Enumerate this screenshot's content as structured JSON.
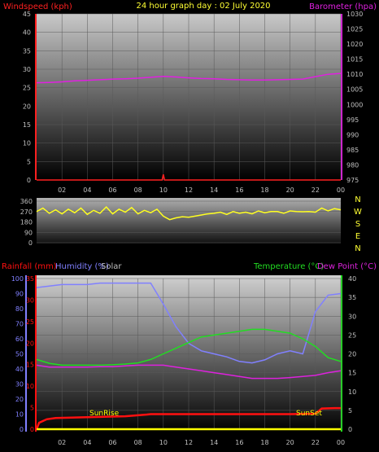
{
  "header": {
    "left_label": "Windspeed (kph)",
    "center_title": "24 hour graph day : 02 July 2020",
    "right_label": "Barometer (hpa)"
  },
  "colors": {
    "wind": "#ff2020",
    "barometer": "#e020e0",
    "title": "#ffff33",
    "wind_dir": "#ffff20",
    "rain": "#ff1010",
    "humidity": "#8080ff",
    "solar": "#c0c0c0",
    "temperature": "#22dd22",
    "dewpoint": "#dd22dd",
    "sun": "#ffff00",
    "axis_text": "#c0c0c0"
  },
  "panel3": {
    "rain_label": "Rainfall (mm)",
    "humidity_label": "Humidity (%)",
    "solar_label": "Solar",
    "temp_label": "Temperature (°C)",
    "dew_label": "Dew Point (°C)",
    "sunrise_label": "SunRise",
    "sunset_label": "SunSet"
  },
  "chart_data": [
    {
      "type": "line",
      "x_ticks": [
        "02",
        "04",
        "06",
        "08",
        "10",
        "12",
        "14",
        "16",
        "18",
        "20",
        "22",
        "00"
      ],
      "left_axis": {
        "ticks": [
          0,
          5,
          10,
          15,
          20,
          25,
          30,
          35,
          40,
          45
        ],
        "ylim": [
          0,
          45
        ]
      },
      "right_axis": {
        "ticks": [
          975,
          980,
          985,
          990,
          995,
          1000,
          1005,
          1010,
          1015,
          1020,
          1025,
          1030
        ],
        "ylim": [
          975,
          1030
        ]
      },
      "series": [
        {
          "name": "Barometer (hpa)",
          "axis": "right",
          "x": [
            0,
            1,
            2,
            3,
            4,
            5,
            6,
            7,
            8,
            9,
            10,
            11,
            12,
            13,
            14,
            15,
            16,
            17,
            18,
            19,
            20,
            21,
            22,
            23,
            24
          ],
          "values": [
            1007.2,
            1007.3,
            1007.5,
            1007.8,
            1008.0,
            1008.2,
            1008.4,
            1008.5,
            1008.7,
            1009.0,
            1009.3,
            1009.1,
            1008.8,
            1008.6,
            1008.5,
            1008.3,
            1008.2,
            1008.1,
            1008.1,
            1008.2,
            1008.3,
            1008.4,
            1009.2,
            1010.0,
            1010.3
          ]
        },
        {
          "name": "Windspeed (kph)",
          "axis": "left",
          "x": [
            0,
            4,
            8,
            9.9,
            10.0,
            10.1,
            12,
            16,
            20,
            24
          ],
          "values": [
            0,
            0,
            0,
            0,
            1.5,
            0,
            0,
            0,
            0,
            0
          ]
        }
      ]
    },
    {
      "type": "line",
      "y_ticks": [
        0,
        90,
        180,
        270,
        360
      ],
      "ylim": [
        0,
        360
      ],
      "side_labels": [
        "N",
        "W",
        "S",
        "E",
        "N"
      ],
      "series": [
        {
          "name": "Wind direction",
          "x": [
            0,
            0.5,
            1,
            1.5,
            2,
            2.5,
            3,
            3.5,
            4,
            4.5,
            5,
            5.5,
            6,
            6.5,
            7,
            7.5,
            8,
            8.5,
            9,
            9.5,
            10,
            10.5,
            11,
            11.5,
            12,
            12.5,
            13,
            13.5,
            14,
            14.5,
            15,
            15.5,
            16,
            16.5,
            17,
            17.5,
            18,
            18.5,
            19,
            19.5,
            20,
            20.5,
            21,
            21.5,
            22,
            22.5,
            23,
            23.5,
            24
          ],
          "values": [
            270,
            300,
            255,
            285,
            250,
            290,
            260,
            300,
            245,
            280,
            255,
            310,
            250,
            290,
            265,
            305,
            250,
            280,
            260,
            290,
            230,
            200,
            215,
            225,
            220,
            230,
            240,
            250,
            255,
            265,
            245,
            270,
            255,
            265,
            250,
            275,
            260,
            270,
            270,
            255,
            275,
            270,
            268,
            270,
            265,
            300,
            275,
            295,
            285
          ]
        }
      ]
    },
    {
      "type": "line",
      "x_ticks": [
        "02",
        "04",
        "06",
        "08",
        "10",
        "12",
        "14",
        "16",
        "18",
        "20",
        "22",
        "00"
      ],
      "left_axis_rain": {
        "ticks": [
          0,
          5,
          10,
          15,
          20,
          25,
          30,
          35
        ],
        "ylim": [
          0,
          35
        ]
      },
      "left_axis_humidity": {
        "ticks": [
          0,
          10,
          20,
          30,
          40,
          50,
          60,
          70,
          80,
          90,
          100
        ],
        "ylim": [
          0,
          100
        ]
      },
      "right_axis": {
        "ticks": [
          0,
          5,
          10,
          15,
          20,
          25,
          30,
          35,
          40
        ],
        "ylim": [
          0,
          40
        ]
      },
      "series": [
        {
          "name": "Humidity (%)",
          "axis": "humidity",
          "x": [
            0,
            1,
            2,
            3,
            4,
            5,
            6,
            7,
            8,
            9,
            10,
            11,
            12,
            13,
            14,
            15,
            16,
            17,
            18,
            19,
            20,
            21,
            22,
            23,
            24
          ],
          "values": [
            94,
            95,
            96,
            96,
            96,
            97,
            97,
            97,
            97,
            97,
            83,
            68,
            57,
            52,
            50,
            48,
            45,
            44,
            46,
            50,
            52,
            50,
            78,
            89,
            90
          ]
        },
        {
          "name": "Temperature (°C)",
          "axis": "right",
          "x": [
            0,
            1,
            2,
            3,
            4,
            5,
            6,
            7,
            8,
            9,
            10,
            11,
            12,
            13,
            14,
            15,
            16,
            17,
            18,
            19,
            20,
            21,
            22,
            23,
            24
          ],
          "values": [
            18.5,
            17.5,
            17,
            17,
            17,
            17,
            17.1,
            17.3,
            17.6,
            18.5,
            20,
            21.5,
            23,
            24.5,
            25,
            25.5,
            26,
            26.5,
            26.5,
            26,
            25.5,
            24,
            22,
            19,
            18
          ]
        },
        {
          "name": "Dew Point (°C)",
          "axis": "right",
          "x": [
            0,
            1,
            2,
            3,
            4,
            5,
            6,
            7,
            8,
            9,
            10,
            11,
            12,
            13,
            14,
            15,
            16,
            17,
            18,
            19,
            20,
            21,
            22,
            23,
            24
          ],
          "values": [
            17,
            16.5,
            16.5,
            16.5,
            16.5,
            16.6,
            16.6,
            16.8,
            17,
            17,
            17,
            16.5,
            16,
            15.5,
            15,
            14.5,
            14,
            13.5,
            13.5,
            13.5,
            13.7,
            14,
            14.3,
            15,
            15.5
          ]
        },
        {
          "name": "Rainfall (mm)",
          "axis": "rain",
          "x": [
            0,
            0.2,
            0.8,
            1.5,
            4,
            7,
            8.7,
            9,
            12,
            16,
            20,
            22,
            22.5,
            23.5,
            24
          ],
          "values": [
            0,
            1.5,
            2.3,
            2.6,
            2.8,
            3,
            3.4,
            3.5,
            3.5,
            3.5,
            3.5,
            3.6,
            4.8,
            4.9,
            4.9
          ]
        },
        {
          "name": "Solar",
          "axis": "rain",
          "x": [
            0,
            24
          ],
          "values": [
            0,
            0
          ]
        }
      ]
    }
  ]
}
